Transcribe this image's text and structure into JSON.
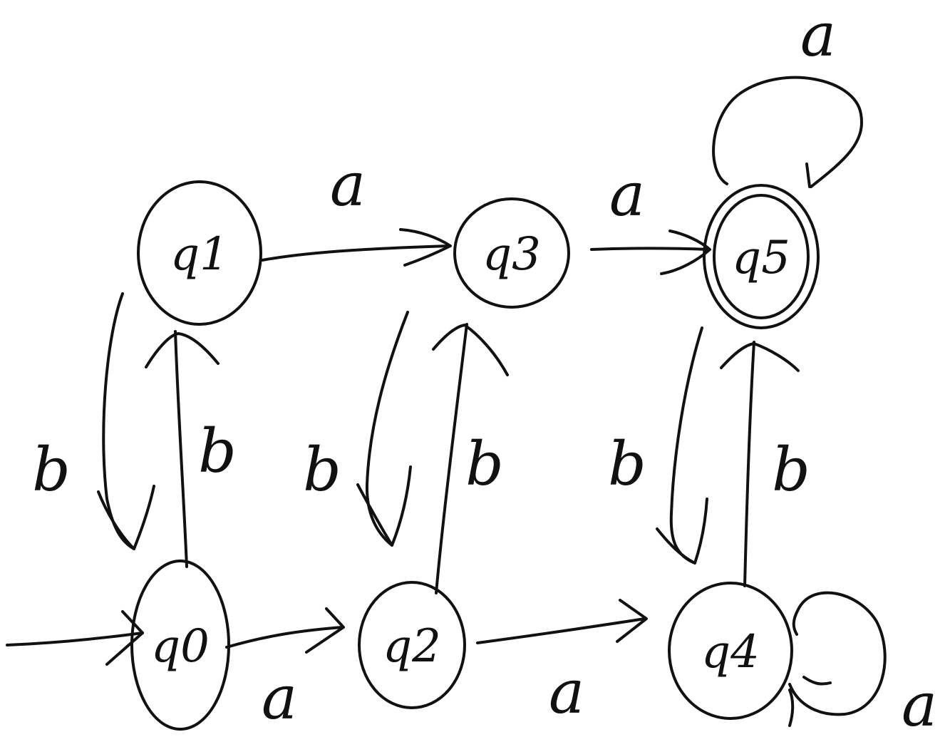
{
  "states": [
    {
      "id": "q0",
      "label": "q0",
      "initial": true,
      "accepting": false
    },
    {
      "id": "q1",
      "label": "q1",
      "initial": false,
      "accepting": false
    },
    {
      "id": "q2",
      "label": "q2",
      "initial": false,
      "accepting": false
    },
    {
      "id": "q3",
      "label": "q3",
      "initial": false,
      "accepting": false
    },
    {
      "id": "q4",
      "label": "q4",
      "initial": false,
      "accepting": false
    },
    {
      "id": "q5",
      "label": "q5",
      "initial": false,
      "accepting": true
    }
  ],
  "transitions": [
    {
      "from": "q0",
      "to": "q2",
      "symbol": "a"
    },
    {
      "from": "q2",
      "to": "q4",
      "symbol": "a"
    },
    {
      "from": "q4",
      "to": "q4",
      "symbol": "a"
    },
    {
      "from": "q1",
      "to": "q3",
      "symbol": "a"
    },
    {
      "from": "q3",
      "to": "q5",
      "symbol": "a"
    },
    {
      "from": "q5",
      "to": "q5",
      "symbol": "a"
    },
    {
      "from": "q1",
      "to": "q0",
      "symbol": "b"
    },
    {
      "from": "q0",
      "to": "q1",
      "symbol": "b"
    },
    {
      "from": "q3",
      "to": "q2",
      "symbol": "b"
    },
    {
      "from": "q2",
      "to": "q3",
      "symbol": "b"
    },
    {
      "from": "q5",
      "to": "q4",
      "symbol": "b"
    },
    {
      "from": "q4",
      "to": "q5",
      "symbol": "b"
    }
  ]
}
